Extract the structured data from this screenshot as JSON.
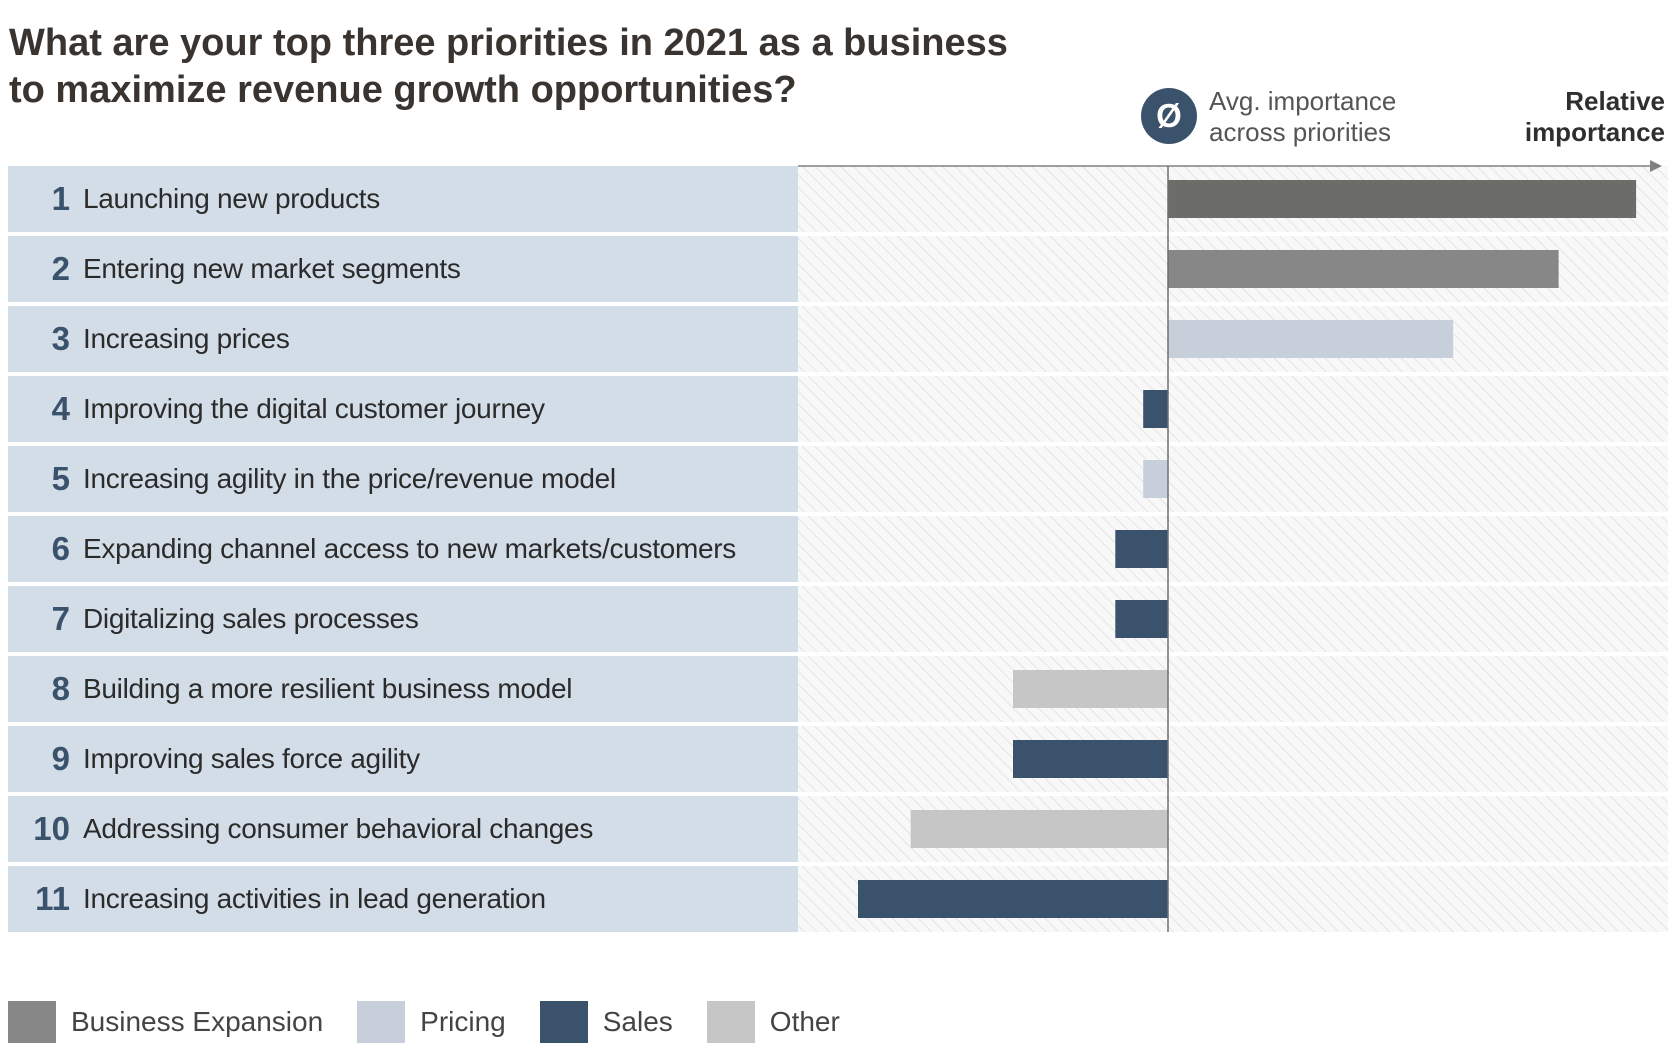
{
  "chart_data": {
    "type": "bar",
    "orientation": "horizontal",
    "title": "What are your top three priorities in 2021 as a business to maximize revenue growth opportunities?",
    "title_lines": [
      "What are your top three priorities in 2021 as a business",
      "to maximize revenue growth opportunities?"
    ],
    "avg_marker_symbol": "Ø",
    "avg_marker_lines": [
      "Avg. importance",
      "across priorities"
    ],
    "axis_label_lines": [
      "Relative",
      "importance"
    ],
    "xlim": [
      -100,
      150
    ],
    "baseline": 0,
    "categories": [
      {
        "rank": "1",
        "label": "Launching new products",
        "value": 151,
        "group": "Business Expansion"
      },
      {
        "rank": "2",
        "label": "Entering new market segments",
        "value": 126,
        "group": "Business Expansion"
      },
      {
        "rank": "3",
        "label": "Increasing prices",
        "value": 92,
        "group": "Pricing"
      },
      {
        "rank": "4",
        "label": "Improving the digital customer journey",
        "value": -8,
        "group": "Sales"
      },
      {
        "rank": "5",
        "label": "Increasing agility in the price/revenue model",
        "value": -8,
        "group": "Pricing"
      },
      {
        "rank": "6",
        "label": "Expanding channel access to new markets/customers",
        "value": -17,
        "group": "Sales"
      },
      {
        "rank": "7",
        "label": "Digitalizing sales processes",
        "value": -17,
        "group": "Sales"
      },
      {
        "rank": "8",
        "label": "Building a more resilient business model",
        "value": -50,
        "group": "Other"
      },
      {
        "rank": "9",
        "label": "Improving sales force agility",
        "value": -50,
        "group": "Sales"
      },
      {
        "rank": "10",
        "label": "Addressing consumer behavioral changes",
        "value": -83,
        "group": "Other"
      },
      {
        "rank": "11",
        "label": "Increasing activities in lead generation",
        "value": -100,
        "group": "Sales"
      }
    ],
    "legend": [
      {
        "name": "Business Expansion",
        "color": "#878787"
      },
      {
        "name": "Pricing",
        "color": "#c7d0da"
      },
      {
        "name": "Sales",
        "color": "#3b526c"
      },
      {
        "name": "Other",
        "color": "#c6c6c6"
      }
    ],
    "special_colors": {
      "1": "#6c6c68"
    }
  }
}
